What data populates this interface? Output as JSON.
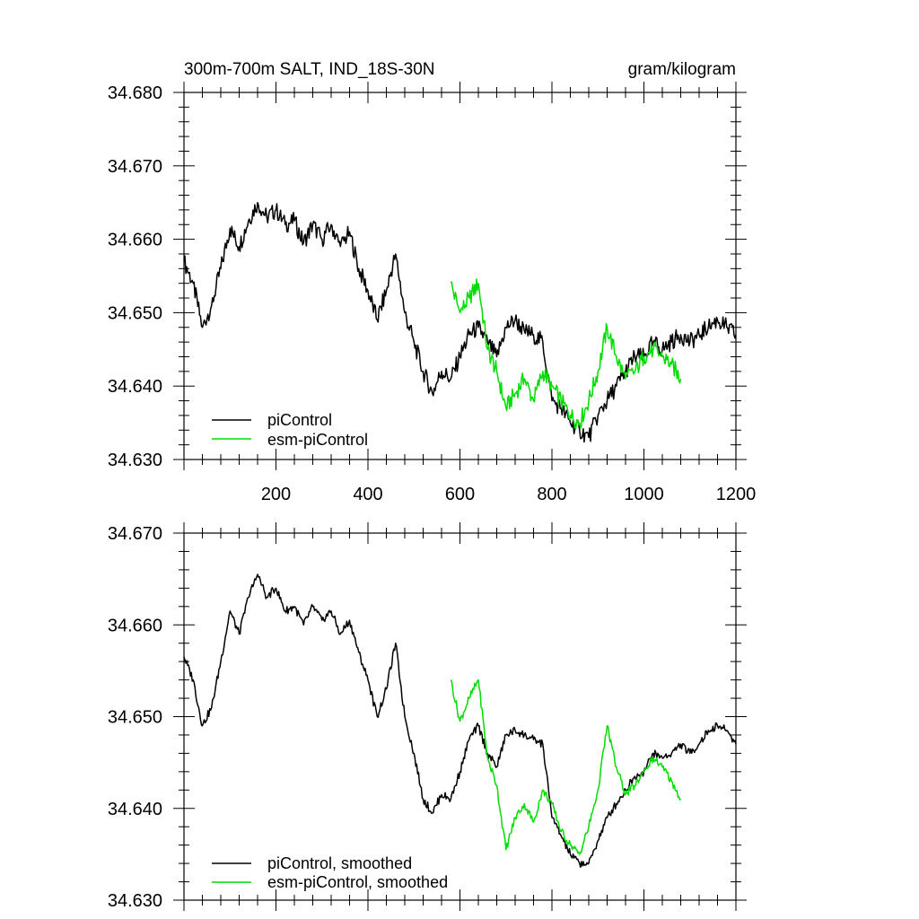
{
  "chart_data": [
    {
      "type": "line",
      "title": "300m-700m SALT, IND_18S-30N",
      "units": "gram/kilogram",
      "xlabel": "",
      "ylabel": "",
      "xlim": [
        0,
        1200
      ],
      "ylim": [
        34.63,
        34.68
      ],
      "x_ticks": [
        200,
        400,
        600,
        800,
        1000,
        1200
      ],
      "x_tick_labels": [
        "200",
        "400",
        "600",
        "800",
        "1000",
        "1200"
      ],
      "y_ticks": [
        34.63,
        34.64,
        34.65,
        34.66,
        34.67,
        34.68
      ],
      "y_tick_labels": [
        "34.630",
        "34.640",
        "34.650",
        "34.660",
        "34.670",
        "34.680"
      ],
      "grid": false,
      "legend_position": "bottom-left",
      "series": [
        {
          "name": "piControl",
          "color": "#000000",
          "x": [
            0,
            20,
            40,
            60,
            80,
            100,
            120,
            140,
            160,
            180,
            200,
            220,
            240,
            260,
            280,
            300,
            320,
            340,
            360,
            380,
            400,
            420,
            440,
            460,
            480,
            500,
            520,
            540,
            560,
            580,
            600,
            620,
            640,
            660,
            680,
            700,
            720,
            740,
            760,
            780,
            800,
            820,
            840,
            860,
            880,
            900,
            920,
            940,
            960,
            980,
            1000,
            1020,
            1040,
            1060,
            1080,
            1100,
            1120,
            1140,
            1160,
            1180,
            1200
          ],
          "y": [
            34.657,
            34.654,
            34.648,
            34.651,
            34.656,
            34.6615,
            34.659,
            34.6625,
            34.665,
            34.663,
            34.664,
            34.662,
            34.6625,
            34.6595,
            34.662,
            34.66,
            34.662,
            34.659,
            34.661,
            34.656,
            34.653,
            34.649,
            34.653,
            34.658,
            34.65,
            34.646,
            34.642,
            34.639,
            34.642,
            34.641,
            34.644,
            34.647,
            34.648,
            34.646,
            34.644,
            34.648,
            34.649,
            34.6475,
            34.647,
            34.646,
            34.638,
            34.637,
            34.635,
            34.634,
            34.633,
            34.636,
            34.638,
            34.64,
            34.642,
            34.644,
            34.644,
            34.646,
            34.645,
            34.646,
            34.647,
            34.646,
            34.647,
            34.648,
            34.649,
            34.648,
            34.647
          ]
        },
        {
          "name": "esm-piControl",
          "color": "#00dd00",
          "x": [
            580,
            600,
            620,
            640,
            660,
            680,
            700,
            720,
            740,
            760,
            780,
            800,
            820,
            840,
            860,
            880,
            900,
            920,
            940,
            960,
            980,
            1000,
            1020,
            1040,
            1060,
            1080
          ],
          "y": [
            34.654,
            34.65,
            34.652,
            34.654,
            34.645,
            34.642,
            34.637,
            34.639,
            34.641,
            34.638,
            34.642,
            34.64,
            34.638,
            34.636,
            34.635,
            34.638,
            34.642,
            34.648,
            34.644,
            34.641,
            34.642,
            34.644,
            34.645,
            34.644,
            34.643,
            34.641
          ]
        }
      ],
      "legend": [
        {
          "label": "piControl",
          "color": "#000000"
        },
        {
          "label": "esm-piControl",
          "color": "#00dd00"
        }
      ]
    },
    {
      "type": "line",
      "title": "",
      "xlabel": "",
      "ylabel": "",
      "xlim": [
        0,
        1200
      ],
      "ylim": [
        34.63,
        34.67
      ],
      "x_ticks": [
        200,
        400,
        600,
        800,
        1000,
        1200
      ],
      "x_tick_labels": [],
      "y_ticks": [
        34.63,
        34.64,
        34.65,
        34.66,
        34.67
      ],
      "y_tick_labels": [
        "34.630",
        "34.640",
        "34.650",
        "34.660",
        "34.670"
      ],
      "grid": false,
      "legend_position": "bottom-left",
      "series": [
        {
          "name": "piControl, smoothed",
          "color": "#000000",
          "x": [
            0,
            20,
            40,
            60,
            80,
            100,
            120,
            140,
            160,
            180,
            200,
            220,
            240,
            260,
            280,
            300,
            320,
            340,
            360,
            380,
            400,
            420,
            440,
            460,
            480,
            500,
            520,
            540,
            560,
            580,
            600,
            620,
            640,
            660,
            680,
            700,
            720,
            740,
            760,
            780,
            800,
            820,
            840,
            860,
            880,
            900,
            920,
            940,
            960,
            980,
            1000,
            1020,
            1040,
            1060,
            1080,
            1100,
            1120,
            1140,
            1160,
            1180,
            1200
          ],
          "y": [
            34.6565,
            34.654,
            34.649,
            34.651,
            34.656,
            34.6615,
            34.659,
            34.663,
            34.6655,
            34.663,
            34.664,
            34.6615,
            34.662,
            34.66,
            34.662,
            34.6605,
            34.6615,
            34.659,
            34.6605,
            34.657,
            34.654,
            34.65,
            34.653,
            34.658,
            34.65,
            34.646,
            34.641,
            34.6395,
            34.6415,
            34.641,
            34.644,
            34.6475,
            34.649,
            34.646,
            34.6445,
            34.648,
            34.6485,
            34.648,
            34.6475,
            34.647,
            34.639,
            34.637,
            34.635,
            34.634,
            34.634,
            34.6365,
            34.639,
            34.6405,
            34.642,
            34.6435,
            34.644,
            34.646,
            34.6455,
            34.646,
            34.647,
            34.646,
            34.647,
            34.6485,
            34.649,
            34.6485,
            34.647
          ]
        },
        {
          "name": "esm-piControl, smoothed",
          "color": "#00dd00",
          "x": [
            580,
            600,
            620,
            640,
            660,
            680,
            700,
            720,
            740,
            760,
            780,
            800,
            820,
            840,
            860,
            880,
            900,
            920,
            940,
            960,
            980,
            1000,
            1020,
            1040,
            1060,
            1080
          ],
          "y": [
            34.654,
            34.6495,
            34.652,
            34.654,
            34.6455,
            34.6425,
            34.6355,
            34.639,
            34.6405,
            34.6385,
            34.642,
            34.6405,
            34.6375,
            34.636,
            34.635,
            34.638,
            34.642,
            34.649,
            34.6445,
            34.6415,
            34.6425,
            34.644,
            34.6455,
            34.6445,
            34.643,
            34.641
          ]
        }
      ],
      "legend": [
        {
          "label": "piControl, smoothed",
          "color": "#000000"
        },
        {
          "label": "esm-piControl, smoothed",
          "color": "#00dd00"
        }
      ]
    }
  ]
}
